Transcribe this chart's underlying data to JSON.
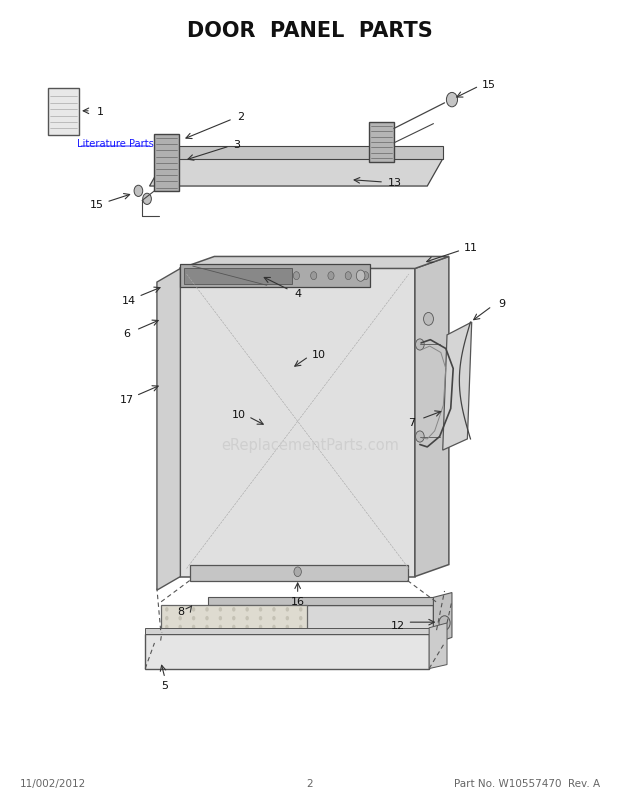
{
  "title": "DOOR  PANEL  PARTS",
  "title_fontsize": 15,
  "title_fontweight": "bold",
  "background_color": "#ffffff",
  "footer_left": "11/002/2012",
  "footer_center": "2",
  "footer_right": "Part No. W10557470  Rev. A",
  "watermark": "eReplacementParts.com",
  "lit_parts_text": "Literature Parts",
  "fig_width": 6.2,
  "fig_height": 8.03,
  "dpi": 100
}
